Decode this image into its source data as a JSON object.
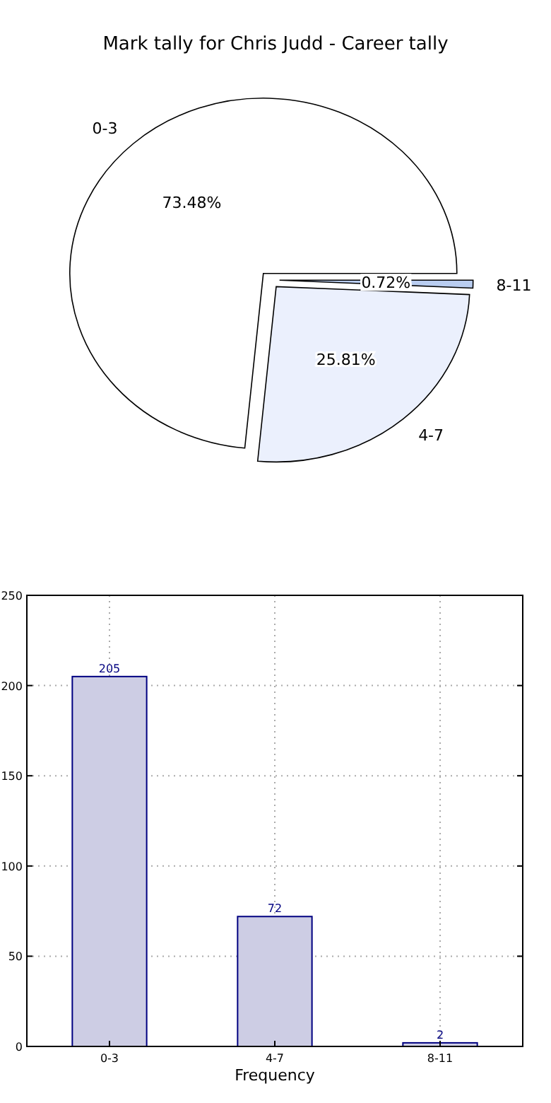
{
  "chart_data": [
    {
      "type": "pie",
      "title": "Mark tally for Chris Judd - Career tally",
      "categories": [
        "0-3",
        "4-7",
        "8-11"
      ],
      "values": [
        73.48,
        25.81,
        0.72
      ],
      "colors": [
        "#ffffff",
        "#ebf0fd",
        "#b9cdf0"
      ],
      "value_labels": [
        "73.48%",
        "25.81%",
        "0.72%"
      ]
    },
    {
      "type": "bar",
      "categories": [
        "0-3",
        "4-7",
        "8-11"
      ],
      "values": [
        205,
        72,
        2
      ],
      "color": "#cdcde4",
      "xlabel": "Frequency",
      "ylim": [
        0,
        250
      ],
      "yticks": [
        0,
        50,
        100,
        150,
        200,
        250
      ],
      "grid": true,
      "data_labels": true
    }
  ]
}
